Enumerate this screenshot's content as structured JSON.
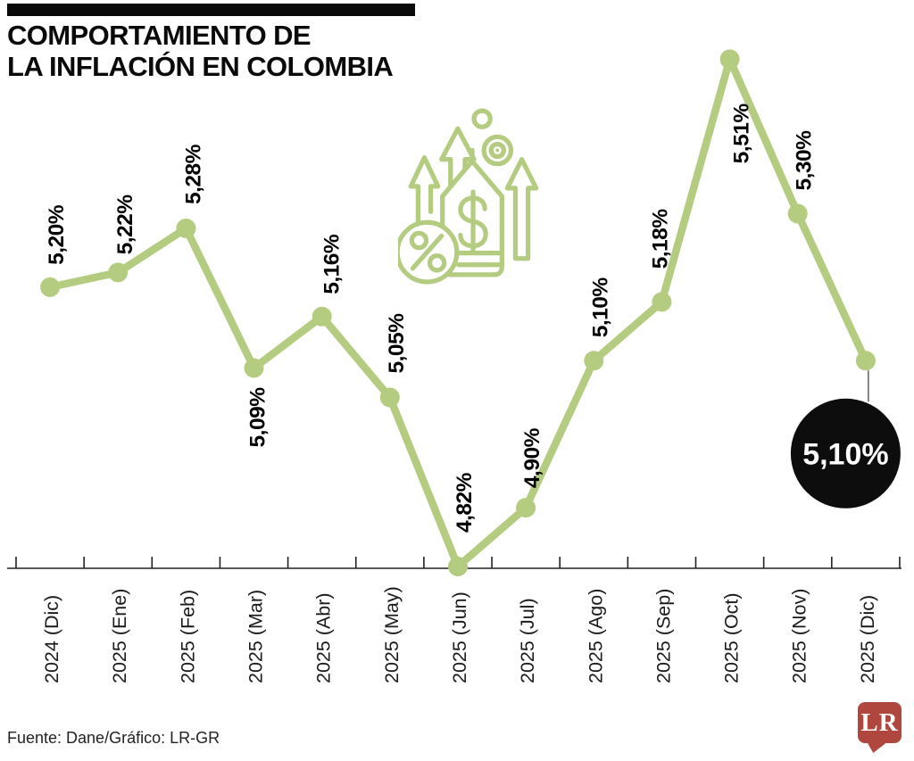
{
  "header": {
    "title_line1": "COMPORTAMIENTO DE",
    "title_line2": "LA INFLACIÓN EN COLOMBIA"
  },
  "chart_data": {
    "type": "line",
    "title": "Comportamiento de la inflación en Colombia",
    "categories": [
      "2024 (Dic)",
      "2025 (Ene)",
      "2025 (Feb)",
      "2025 (Mar)",
      "2025 (Abr)",
      "2025 (May)",
      "2025 (Jun)",
      "2025 (Jul)",
      "2025 (Ago)",
      "2025 (Sep)",
      "2025 (Oct)",
      "2025 (Nov)",
      "2025 (Dic)"
    ],
    "values": [
      5.2,
      5.22,
      5.28,
      5.09,
      5.16,
      5.05,
      4.82,
      4.9,
      5.1,
      5.18,
      5.51,
      5.3,
      5.1
    ],
    "point_labels": [
      "5,20%",
      "5,22%",
      "5,28%",
      "5,09%",
      "5,16%",
      "5,05%",
      "4,82%",
      "4,90%",
      "5,10%",
      "5,18%",
      "5,51%",
      "5,30%",
      "5,10%"
    ],
    "label_placement": [
      "above",
      "above",
      "above",
      "below",
      "above",
      "above",
      "above",
      "above",
      "above",
      "above",
      "below",
      "above",
      "bubble"
    ],
    "highlight": {
      "category": "2025 (Dic)",
      "label": "5,10%",
      "style": "black-circle-callout"
    },
    "unit": "%",
    "xlabel": "",
    "ylabel": "",
    "ylim": [
      4.8,
      5.6
    ],
    "grid": false,
    "legend": false
  },
  "icon": {
    "name": "rising-prices-icon"
  },
  "footer": {
    "source": "Fuente: Dane/Gráfico: LR-GR",
    "logo_text": "LR"
  },
  "colors": {
    "line": "#b4cc80",
    "axis": "#222222",
    "value_label": "#000000",
    "axis_label": "#1a1a1a",
    "bubble_bg": "#0d0d0d",
    "bubble_text": "#ffffff",
    "title": "#0a0a0a",
    "logo_red": "#b0473f",
    "leader_line": "#555555"
  }
}
